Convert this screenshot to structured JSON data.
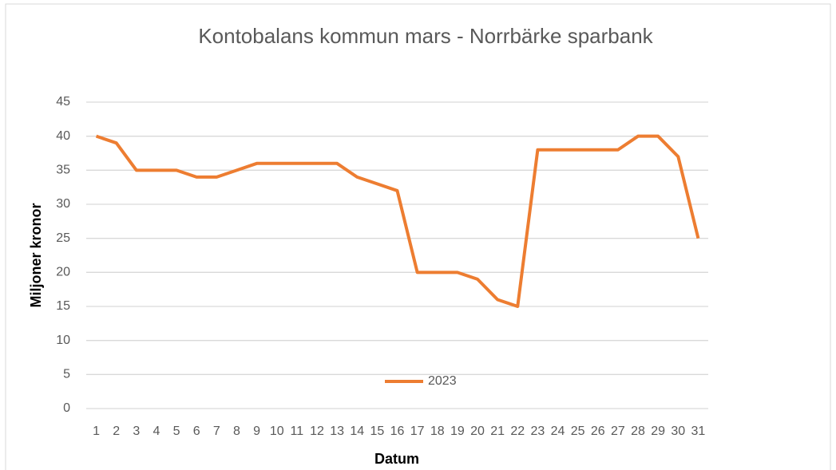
{
  "chart_data": {
    "type": "line",
    "title": "Kontobalans kommun mars - Norrbärke sparbank",
    "y_label": "Miljoner kronor",
    "x_label": "Datum",
    "categories": [
      "1",
      "2",
      "3",
      "4",
      "5",
      "6",
      "7",
      "8",
      "9",
      "10",
      "11",
      "12",
      "13",
      "14",
      "15",
      "16",
      "17",
      "18",
      "19",
      "20",
      "21",
      "22",
      "23",
      "24",
      "25",
      "26",
      "27",
      "28",
      "29",
      "30",
      "31"
    ],
    "series": [
      {
        "name": "2023",
        "color": "#ed7d31",
        "values": [
          40,
          39,
          35,
          35,
          35,
          34,
          34,
          35,
          36,
          36,
          36,
          36,
          36,
          34,
          33,
          32,
          20,
          20,
          20,
          19,
          16,
          15,
          38,
          38,
          38,
          38,
          38,
          40,
          40,
          37,
          25
        ]
      }
    ],
    "ylim": [
      0,
      45
    ],
    "yticks": [
      0,
      5,
      10,
      15,
      20,
      25,
      30,
      35,
      40,
      45
    ],
    "grid": true,
    "legend": "bottom"
  }
}
